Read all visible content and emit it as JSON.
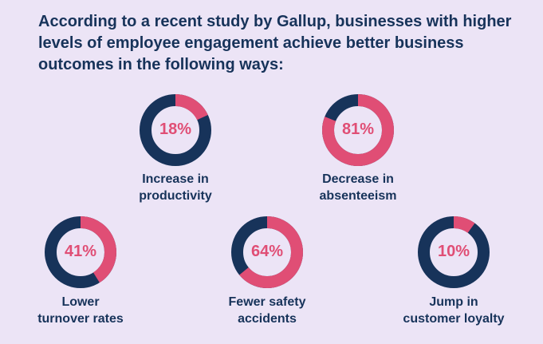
{
  "heading": {
    "lines": [
      "According to a recent study by Gallup, businesses with higher",
      "levels of employee engagement achieve better business",
      "outcomes in the following ways:"
    ]
  },
  "colors": {
    "accent": "#e04e75",
    "ring_dark": "#17335a",
    "background": "#ece4f6"
  },
  "chart_data": {
    "type": "pie",
    "items": [
      {
        "value": 18,
        "value_label": "18%",
        "caption": [
          "Increase in",
          "productivity"
        ]
      },
      {
        "value": 81,
        "value_label": "81%",
        "caption": [
          "Decrease in",
          "absenteeism"
        ]
      },
      {
        "value": 41,
        "value_label": "41%",
        "caption": [
          "Lower",
          "turnover rates"
        ]
      },
      {
        "value": 64,
        "value_label": "64%",
        "caption": [
          "Fewer safety",
          "accidents"
        ]
      },
      {
        "value": 10,
        "value_label": "10%",
        "caption": [
          "Jump in",
          "customer loyalty"
        ]
      }
    ]
  }
}
